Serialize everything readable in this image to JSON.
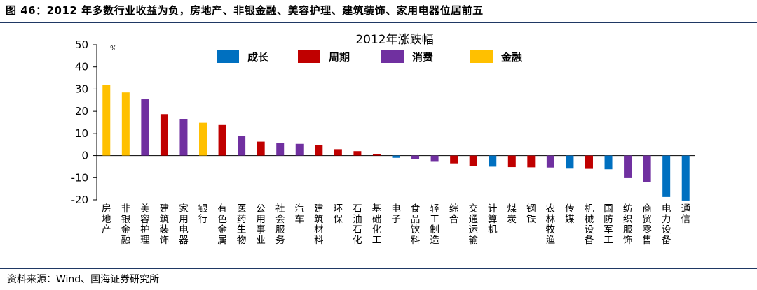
{
  "figure_title": "图 46：2012 年多数行业收益为负，房地产、非银金融、美容护理、建筑装饰、家用电器位居前五",
  "source": "资料来源：Wind、国海证券研究所",
  "colors": {
    "成长": "#0070c0",
    "周期": "#c00000",
    "消费": "#7030a0",
    "金融": "#ffc000",
    "rule": "#1f3864"
  },
  "chart_data": {
    "type": "bar",
    "title": "2012年涨跌幅",
    "ylabel": "%",
    "ylim": [
      -20,
      50
    ],
    "yticks": [
      50,
      40,
      30,
      20,
      10,
      0,
      -10,
      -20
    ],
    "grid": false,
    "legend_position": "top",
    "legend": [
      "成长",
      "周期",
      "消费",
      "金融"
    ],
    "categories": [
      "房地产",
      "非银金融",
      "美容护理",
      "建筑装饰",
      "家用电器",
      "银行",
      "有色金属",
      "医药生物",
      "公用事业",
      "社会服务",
      "汽车",
      "建筑材料",
      "环保",
      "石油石化",
      "基础化工",
      "电子",
      "食品饮料",
      "轻工制造",
      "综合",
      "交通运输",
      "计算机",
      "煤炭",
      "钢铁",
      "农林牧渔",
      "传媒",
      "机械设备",
      "国防军工",
      "纺织服饰",
      "商贸零售",
      "电力设备",
      "通信"
    ],
    "values": [
      32.0,
      28.5,
      25.4,
      18.7,
      16.4,
      14.8,
      13.8,
      9.0,
      6.3,
      5.7,
      5.3,
      4.8,
      2.9,
      2.0,
      0.7,
      -1.0,
      -1.5,
      -2.8,
      -3.5,
      -4.8,
      -5.0,
      -5.2,
      -5.3,
      -5.4,
      -5.9,
      -6.0,
      -6.2,
      -10.2,
      -12.1,
      -18.7,
      -20.3
    ],
    "groups": [
      "金融",
      "金融",
      "消费",
      "周期",
      "消费",
      "金融",
      "周期",
      "消费",
      "周期",
      "消费",
      "消费",
      "周期",
      "周期",
      "周期",
      "周期",
      "成长",
      "消费",
      "消费",
      "周期",
      "周期",
      "成长",
      "周期",
      "周期",
      "消费",
      "成长",
      "周期",
      "成长",
      "消费",
      "消费",
      "成长",
      "成长"
    ]
  }
}
